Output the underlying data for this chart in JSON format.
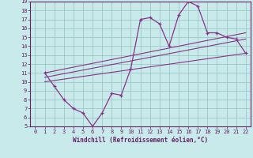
{
  "xlabel": "Windchill (Refroidissement éolien,°C)",
  "ylabel": "",
  "bg_color": "#c8eaeb",
  "grid_color": "#9dc8c8",
  "line_color": "#883388",
  "text_color": "#662266",
  "xlim": [
    -0.5,
    22.5
  ],
  "ylim": [
    5,
    19
  ],
  "xticks": [
    0,
    1,
    2,
    3,
    4,
    5,
    6,
    7,
    8,
    9,
    10,
    11,
    12,
    13,
    14,
    15,
    16,
    17,
    18,
    19,
    20,
    21,
    22
  ],
  "yticks": [
    5,
    6,
    7,
    8,
    9,
    10,
    11,
    12,
    13,
    14,
    15,
    16,
    17,
    18,
    19
  ],
  "curve_x": [
    1,
    2,
    3,
    4,
    5,
    6,
    7,
    8,
    9,
    10,
    11,
    12,
    13,
    14,
    15,
    16,
    17,
    18,
    19,
    20,
    21,
    22
  ],
  "curve_y": [
    11.0,
    9.5,
    8.0,
    7.0,
    6.5,
    5.0,
    6.5,
    8.7,
    8.5,
    11.5,
    17.0,
    17.2,
    16.5,
    14.0,
    17.5,
    19.0,
    18.5,
    15.5,
    15.5,
    15.0,
    14.8,
    13.2
  ],
  "line1_x": [
    1,
    22
  ],
  "line1_y": [
    11.0,
    15.5
  ],
  "line2_x": [
    1,
    22
  ],
  "line2_y": [
    10.5,
    14.8
  ],
  "line3_x": [
    1,
    22
  ],
  "line3_y": [
    10.0,
    13.2
  ]
}
